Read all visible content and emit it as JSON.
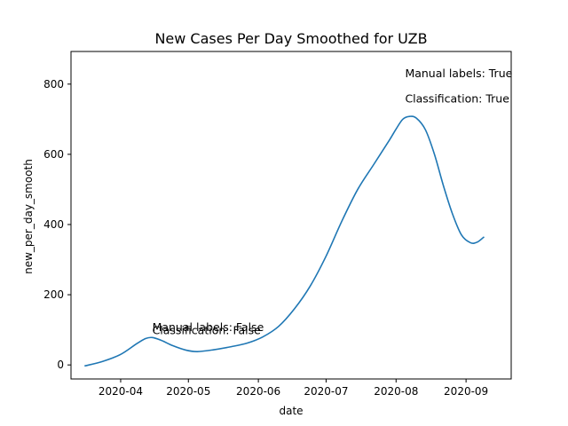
{
  "chart_data": {
    "type": "line",
    "title": "New Cases Per Day Smoothed for UZB",
    "xlabel": "date",
    "ylabel": "new_per_day_smooth",
    "x_tick_labels": [
      "2020-04",
      "2020-05",
      "2020-06",
      "2020-07",
      "2020-08",
      "2020-09"
    ],
    "x_tick_dates": [
      "2020-04-01",
      "2020-05-01",
      "2020-06-01",
      "2020-07-01",
      "2020-08-01",
      "2020-09-01"
    ],
    "y_ticks": [
      0,
      200,
      400,
      600,
      800
    ],
    "xlim": [
      "2020-03-10",
      "2020-09-21"
    ],
    "ylim": [
      -40,
      893
    ],
    "grid": false,
    "line_color": "#1f77b4",
    "series": [
      {
        "x": [
          "2020-03-16",
          "2020-03-24",
          "2020-04-01",
          "2020-04-08",
          "2020-04-12",
          "2020-04-15",
          "2020-04-19",
          "2020-04-24",
          "2020-04-30",
          "2020-05-05",
          "2020-05-12",
          "2020-05-20",
          "2020-05-27",
          "2020-06-03",
          "2020-06-10",
          "2020-06-17",
          "2020-06-24",
          "2020-07-01",
          "2020-07-08",
          "2020-07-15",
          "2020-07-22",
          "2020-07-29",
          "2020-08-01",
          "2020-08-04",
          "2020-08-07",
          "2020-08-10",
          "2020-08-14",
          "2020-08-18",
          "2020-08-22",
          "2020-08-26",
          "2020-08-30",
          "2020-09-03",
          "2020-09-06",
          "2020-09-09"
        ],
        "y": [
          -3,
          10,
          30,
          60,
          75,
          78,
          70,
          55,
          42,
          38,
          43,
          52,
          62,
          80,
          110,
          160,
          225,
          310,
          410,
          500,
          570,
          640,
          672,
          700,
          708,
          703,
          670,
          600,
          510,
          430,
          370,
          348,
          350,
          365
        ]
      }
    ],
    "annotations": [
      {
        "text": "Manual labels: True",
        "x": "2020-08-05",
        "y": 820
      },
      {
        "text": "Classification: True",
        "x": "2020-08-05",
        "y": 748
      },
      {
        "text": "Manual labels: False",
        "x": "2020-04-15",
        "y": 97
      },
      {
        "text": "Classification: False",
        "x": "2020-04-15",
        "y": 88
      }
    ]
  }
}
